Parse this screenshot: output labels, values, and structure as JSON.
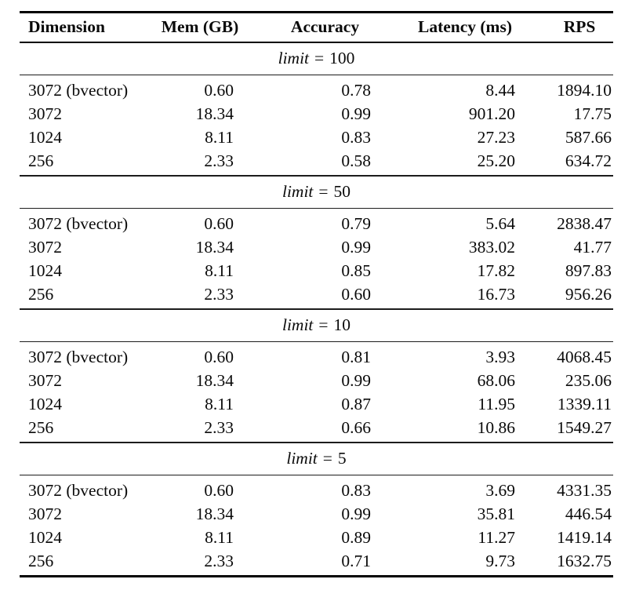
{
  "colors": {
    "background": "#ffffff",
    "text": "#0a0a0a",
    "rule": "#000000"
  },
  "table": {
    "columns": [
      {
        "label": "Dimension"
      },
      {
        "label": "Mem (GB)"
      },
      {
        "label": "Accuracy"
      },
      {
        "label": "Latency (ms)"
      },
      {
        "label": "RPS"
      }
    ],
    "sections": [
      {
        "limit_var": "limit",
        "limit_eq": "=",
        "limit_value": "100",
        "rows": [
          {
            "dimension": "3072 (bvector)",
            "mem_gb": "0.60",
            "accuracy": "0.78",
            "latency_ms": "8.44",
            "rps": "1894.10"
          },
          {
            "dimension": "3072",
            "mem_gb": "18.34",
            "accuracy": "0.99",
            "latency_ms": "901.20",
            "rps": "17.75"
          },
          {
            "dimension": "1024",
            "mem_gb": "8.11",
            "accuracy": "0.83",
            "latency_ms": "27.23",
            "rps": "587.66"
          },
          {
            "dimension": "256",
            "mem_gb": "2.33",
            "accuracy": "0.58",
            "latency_ms": "25.20",
            "rps": "634.72"
          }
        ]
      },
      {
        "limit_var": "limit",
        "limit_eq": "=",
        "limit_value": "50",
        "rows": [
          {
            "dimension": "3072 (bvector)",
            "mem_gb": "0.60",
            "accuracy": "0.79",
            "latency_ms": "5.64",
            "rps": "2838.47"
          },
          {
            "dimension": "3072",
            "mem_gb": "18.34",
            "accuracy": "0.99",
            "latency_ms": "383.02",
            "rps": "41.77"
          },
          {
            "dimension": "1024",
            "mem_gb": "8.11",
            "accuracy": "0.85",
            "latency_ms": "17.82",
            "rps": "897.83"
          },
          {
            "dimension": "256",
            "mem_gb": "2.33",
            "accuracy": "0.60",
            "latency_ms": "16.73",
            "rps": "956.26"
          }
        ]
      },
      {
        "limit_var": "limit",
        "limit_eq": "=",
        "limit_value": "10",
        "rows": [
          {
            "dimension": "3072 (bvector)",
            "mem_gb": "0.60",
            "accuracy": "0.81",
            "latency_ms": "3.93",
            "rps": "4068.45"
          },
          {
            "dimension": "3072",
            "mem_gb": "18.34",
            "accuracy": "0.99",
            "latency_ms": "68.06",
            "rps": "235.06"
          },
          {
            "dimension": "1024",
            "mem_gb": "8.11",
            "accuracy": "0.87",
            "latency_ms": "11.95",
            "rps": "1339.11"
          },
          {
            "dimension": "256",
            "mem_gb": "2.33",
            "accuracy": "0.66",
            "latency_ms": "10.86",
            "rps": "1549.27"
          }
        ]
      },
      {
        "limit_var": "limit",
        "limit_eq": "=",
        "limit_value": "5",
        "rows": [
          {
            "dimension": "3072 (bvector)",
            "mem_gb": "0.60",
            "accuracy": "0.83",
            "latency_ms": "3.69",
            "rps": "4331.35"
          },
          {
            "dimension": "3072",
            "mem_gb": "18.34",
            "accuracy": "0.99",
            "latency_ms": "35.81",
            "rps": "446.54"
          },
          {
            "dimension": "1024",
            "mem_gb": "8.11",
            "accuracy": "0.89",
            "latency_ms": "11.27",
            "rps": "1419.14"
          },
          {
            "dimension": "256",
            "mem_gb": "2.33",
            "accuracy": "0.71",
            "latency_ms": "9.73",
            "rps": "1632.75"
          }
        ]
      }
    ]
  },
  "chart_data": {
    "type": "table",
    "columns": [
      "Dimension",
      "Mem (GB)",
      "Accuracy",
      "Latency (ms)",
      "RPS"
    ],
    "groups": [
      {
        "limit": 100,
        "rows": [
          [
            "3072 (bvector)",
            0.6,
            0.78,
            8.44,
            1894.1
          ],
          [
            "3072",
            18.34,
            0.99,
            901.2,
            17.75
          ],
          [
            "1024",
            8.11,
            0.83,
            27.23,
            587.66
          ],
          [
            "256",
            2.33,
            0.58,
            25.2,
            634.72
          ]
        ]
      },
      {
        "limit": 50,
        "rows": [
          [
            "3072 (bvector)",
            0.6,
            0.79,
            5.64,
            2838.47
          ],
          [
            "3072",
            18.34,
            0.99,
            383.02,
            41.77
          ],
          [
            "1024",
            8.11,
            0.85,
            17.82,
            897.83
          ],
          [
            "256",
            2.33,
            0.6,
            16.73,
            956.26
          ]
        ]
      },
      {
        "limit": 10,
        "rows": [
          [
            "3072 (bvector)",
            0.6,
            0.81,
            3.93,
            4068.45
          ],
          [
            "3072",
            18.34,
            0.99,
            68.06,
            235.06
          ],
          [
            "1024",
            8.11,
            0.87,
            11.95,
            1339.11
          ],
          [
            "256",
            2.33,
            0.66,
            10.86,
            1549.27
          ]
        ]
      },
      {
        "limit": 5,
        "rows": [
          [
            "3072 (bvector)",
            0.6,
            0.83,
            3.69,
            4331.35
          ],
          [
            "3072",
            18.34,
            0.99,
            35.81,
            446.54
          ],
          [
            "1024",
            8.11,
            0.89,
            11.27,
            1419.14
          ],
          [
            "256",
            2.33,
            0.71,
            9.73,
            1632.75
          ]
        ]
      }
    ]
  }
}
